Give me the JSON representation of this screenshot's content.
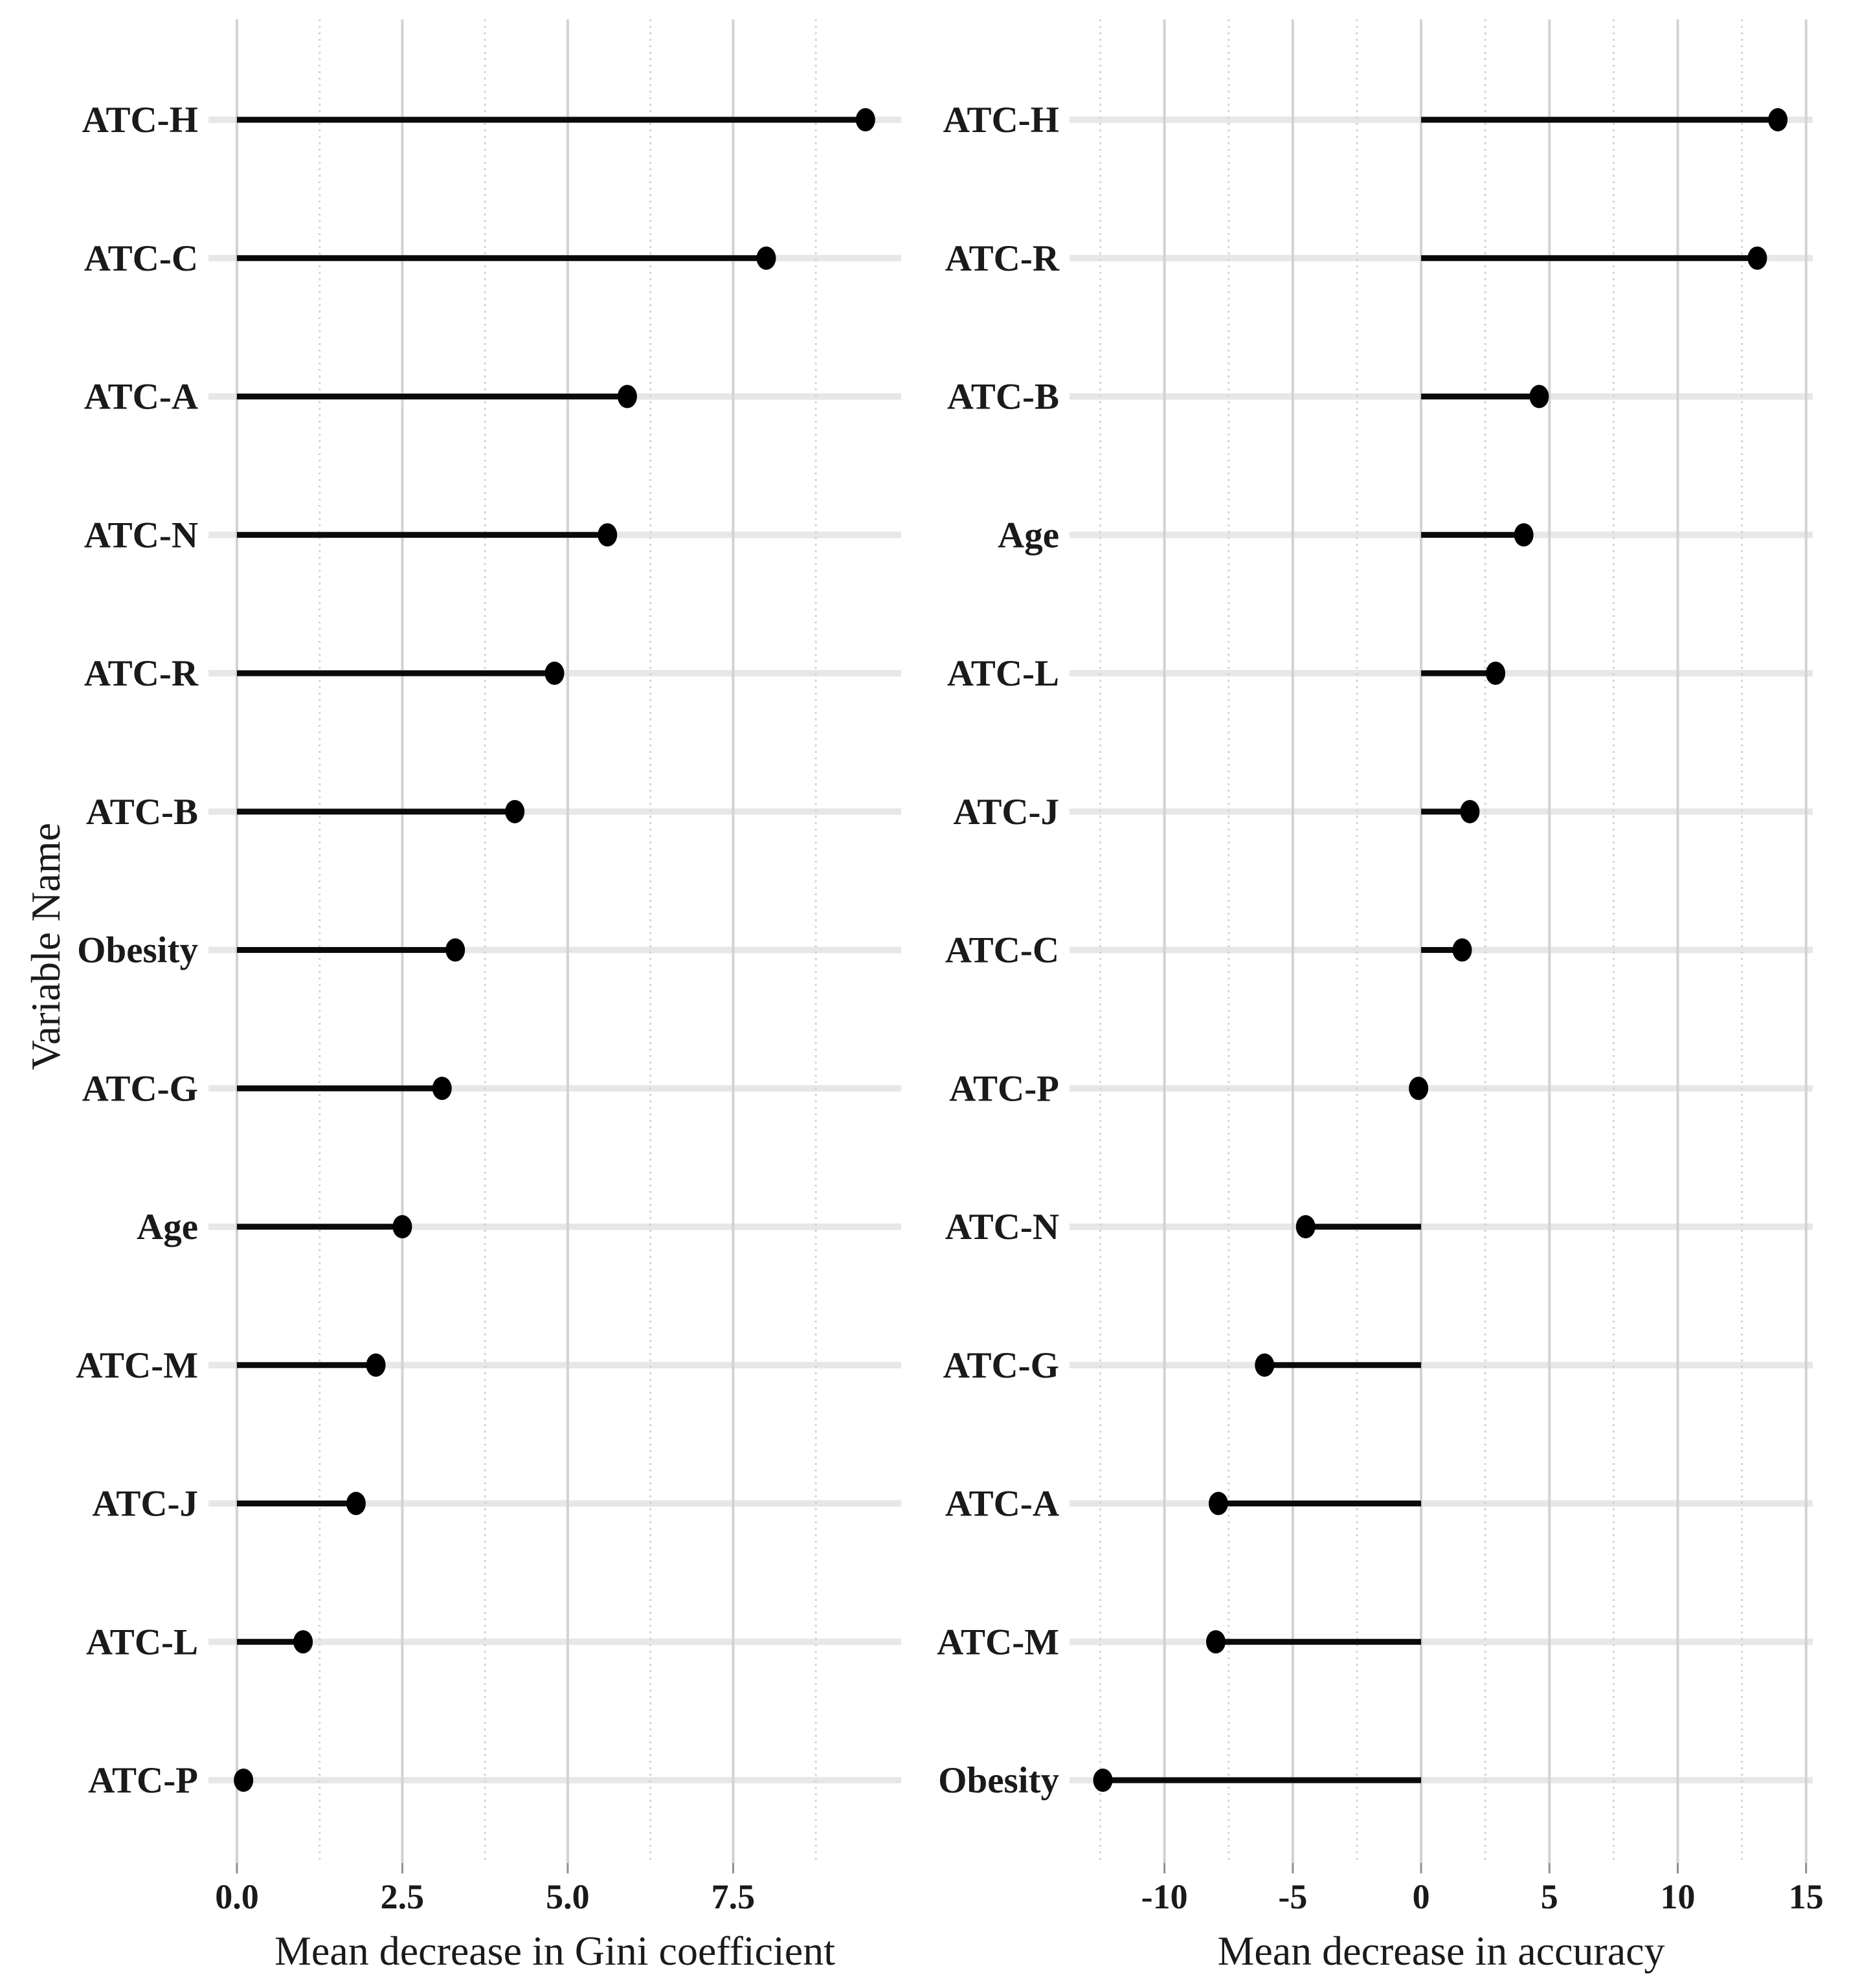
{
  "figure": {
    "y_axis_title": "Variable Name"
  },
  "colors": {
    "background": "#ffffff",
    "point": "#000000",
    "stem": "#0a0a0a",
    "grid_row": "#e7e7e7",
    "grid_major": "#d2d2d2",
    "grid_minor": "#ccd3e1",
    "text": "#1a1a1a",
    "tick_mark": "#8f8f8f"
  },
  "chart_data": [
    {
      "type": "lollipop",
      "panel": "left",
      "xlabel": "Mean decrease in Gini coefficient",
      "ylabel": "Variable Name",
      "categories": [
        "ATC-H",
        "ATC-C",
        "ATC-A",
        "ATC-N",
        "ATC-R",
        "ATC-B",
        "Obesity",
        "ATC-G",
        "Age",
        "ATC-M",
        "ATC-J",
        "ATC-L",
        "ATC-P"
      ],
      "values": [
        9.5,
        8.0,
        5.9,
        5.6,
        4.8,
        4.2,
        3.3,
        3.1,
        2.5,
        2.1,
        1.8,
        1.0,
        0.1
      ],
      "baseline": 0,
      "xticks": [
        0.0,
        2.5,
        5.0,
        7.5
      ],
      "xtick_labels": [
        "0.0",
        "2.5",
        "5.0",
        "7.5"
      ],
      "xlim": [
        -0.43,
        10.04
      ],
      "grid": true,
      "legend": "none"
    },
    {
      "type": "lollipop",
      "panel": "right",
      "xlabel": "Mean decrease in accuracy",
      "ylabel": "",
      "categories": [
        "ATC-H",
        "ATC-R",
        "ATC-B",
        "Age",
        "ATC-L",
        "ATC-J",
        "ATC-C",
        "ATC-P",
        "ATC-N",
        "ATC-G",
        "ATC-A",
        "ATC-M",
        "Obesity"
      ],
      "values": [
        13.9,
        13.1,
        4.6,
        4.0,
        2.9,
        1.9,
        1.6,
        -0.1,
        -4.5,
        -6.1,
        -7.9,
        -8.0,
        -12.4
      ],
      "baseline": 0,
      "xticks": [
        -10,
        -5,
        0,
        5,
        10,
        15
      ],
      "xtick_labels": [
        "-10",
        "-5",
        "0",
        "5",
        "10",
        "15"
      ],
      "xlim": [
        -13.7,
        15.26
      ],
      "grid": true,
      "legend": "none"
    }
  ]
}
